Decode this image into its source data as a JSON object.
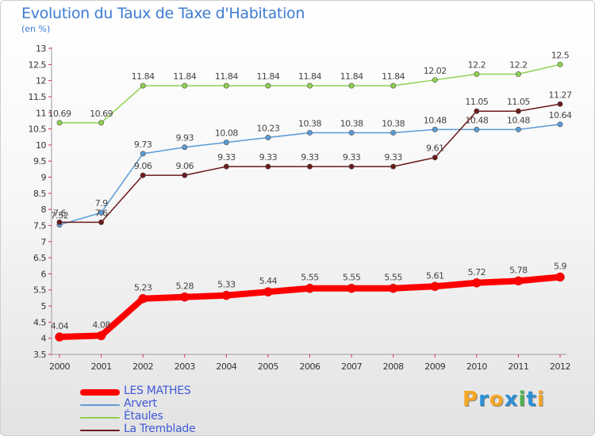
{
  "title": "Evolution du Taux de Taxe d'Habitation",
  "unit": "(en %)",
  "logo": {
    "text": "Proxiti",
    "colors": [
      "#f5a623",
      "#2b8fd6",
      "#f5a623",
      "#2b8fd6",
      "#4db34d",
      "#2b8fd6",
      "#f5a623"
    ]
  },
  "chart_data": {
    "type": "line",
    "title": "Evolution du Taux de Taxe d'Habitation",
    "ylabel": "(en %)",
    "xlabel": "",
    "x": [
      "2000",
      "2001",
      "2002",
      "2003",
      "2004",
      "2005",
      "2006",
      "2007",
      "2008",
      "2009",
      "2010",
      "2011",
      "2012"
    ],
    "ylim": [
      3.5,
      13
    ],
    "yticks": [
      "3.5",
      "4",
      "4.5",
      "5",
      "5.5",
      "6",
      "6.5",
      "7",
      "7.5",
      "8",
      "8.5",
      "9",
      "9.5",
      "10",
      "10.5",
      "11",
      "11.5",
      "12",
      "12.5",
      "13"
    ],
    "grid": false,
    "legend_position": "bottom-left",
    "series": [
      {
        "name": "Étaules",
        "color": "#8fd14f",
        "width": "thin",
        "marker": true,
        "values": [
          10.69,
          10.69,
          11.84,
          11.84,
          11.84,
          11.84,
          11.84,
          11.84,
          11.84,
          12.02,
          12.2,
          12.2,
          12.5
        ],
        "labels": [
          "10.69",
          "10.69",
          "11.84",
          "11.84",
          "11.84",
          "11.84",
          "11.84",
          "11.84",
          "11.84",
          "12.02",
          "12.2",
          "12.2",
          "12.5"
        ]
      },
      {
        "name": "Arvert",
        "color": "#5b9bd5",
        "width": "thin",
        "marker": true,
        "values": [
          7.52,
          7.9,
          9.73,
          9.93,
          10.08,
          10.23,
          10.38,
          10.38,
          10.38,
          10.48,
          10.48,
          10.48,
          10.64
        ],
        "labels": [
          "7.52",
          "7.9",
          "9.73",
          "9.93",
          "10.08",
          "10.23",
          "10.38",
          "10.38",
          "10.38",
          "10.48",
          "10.48",
          "10.48",
          "10.64"
        ]
      },
      {
        "name": "La Tremblade",
        "color": "#6b1a1a",
        "width": "thin",
        "marker": true,
        "values": [
          7.6,
          7.6,
          9.06,
          9.06,
          9.33,
          9.33,
          9.33,
          9.33,
          9.33,
          9.61,
          11.05,
          11.05,
          11.27
        ],
        "labels": [
          "7.6",
          "7.6",
          "9.06",
          "9.06",
          "9.33",
          "9.33",
          "9.33",
          "9.33",
          "9.33",
          "9.61",
          "11.05",
          "11.05",
          "11.27"
        ]
      },
      {
        "name": "LES MATHES",
        "color": "#ff0000",
        "width": "thick",
        "marker": true,
        "values": [
          4.04,
          4.08,
          5.23,
          5.28,
          5.33,
          5.44,
          5.55,
          5.55,
          5.55,
          5.61,
          5.72,
          5.78,
          5.9
        ],
        "labels": [
          "4.04",
          "4.08",
          "5.23",
          "5.28",
          "5.33",
          "5.44",
          "5.55",
          "5.55",
          "5.55",
          "5.61",
          "5.72",
          "5.78",
          "5.9"
        ]
      }
    ],
    "legend": [
      {
        "name": "LES MATHES",
        "color": "#ff0000",
        "width": "thick"
      },
      {
        "name": "Arvert",
        "color": "#5b9bd5",
        "width": "thin"
      },
      {
        "name": "Étaules",
        "color": "#8fd14f",
        "width": "thin"
      },
      {
        "name": "La Tremblade",
        "color": "#6b1a1a",
        "width": "thin"
      }
    ]
  }
}
